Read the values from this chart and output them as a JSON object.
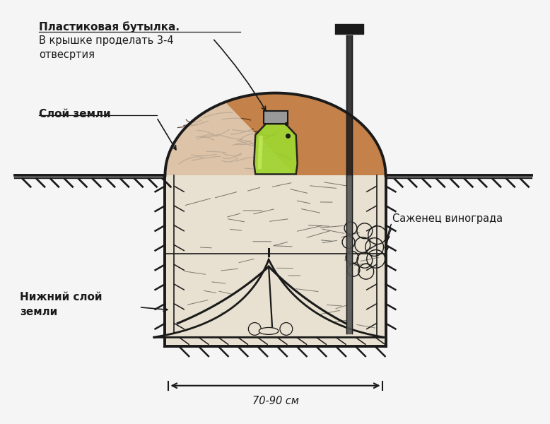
{
  "bg_color": "#f5f5f5",
  "line_color": "#1a1a1a",
  "soil_brown": "#c4824a",
  "soil_light": "#e8e0d0",
  "bottle_green": "#9fd630",
  "bottle_cap": "#999999",
  "label_bottle": "Пластиковая бутылка.",
  "label_bottle2": "В крышке проделать 3-4",
  "label_bottle3": "отвесртия",
  "label_soil": "Слой земли",
  "label_lower": "Нижний слой",
  "label_lower2": "земли",
  "label_sapling": "Саженец винограда",
  "label_size": "70-90 см"
}
